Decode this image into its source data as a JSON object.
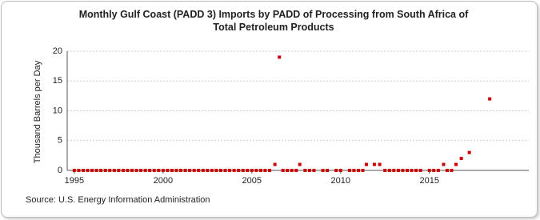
{
  "chart_data": {
    "type": "scatter",
    "title": "Monthly Gulf Coast (PADD 3) Imports by PADD of Processing from South Africa of Total Petroleum Products",
    "y_label": "Thousand Barrels per Day",
    "source": "Source: U.S. Energy Information Administration",
    "color": "#cc0000",
    "grid": true,
    "xlim": [
      1994.6,
      2020.6
    ],
    "ylim": [
      0,
      20
    ],
    "xticks": [
      1995,
      2000,
      2005,
      2010,
      2015
    ],
    "yticks": [
      0,
      5,
      10,
      15,
      20
    ],
    "x": [
      1995,
      1995.25,
      1995.5,
      1995.75,
      1996,
      1996.25,
      1996.5,
      1996.75,
      1997,
      1997.25,
      1997.5,
      1997.75,
      1998,
      1998.25,
      1998.5,
      1998.75,
      1999,
      1999.25,
      1999.5,
      1999.75,
      2000,
      2000.25,
      2000.5,
      2000.75,
      2001,
      2001.25,
      2001.5,
      2001.75,
      2002,
      2002.25,
      2002.5,
      2002.75,
      2003,
      2003.25,
      2003.5,
      2003.75,
      2004,
      2004.25,
      2004.5,
      2004.75,
      2005,
      2005.25,
      2005.5,
      2005.75,
      2006,
      2006.3,
      2006.55,
      2006.75,
      2007,
      2007.25,
      2007.5,
      2007.7,
      2008,
      2008.25,
      2008.5,
      2009,
      2009.25,
      2009.75,
      2010,
      2010.5,
      2010.75,
      2011,
      2011.25,
      2011.45,
      2011.9,
      2012.2,
      2012.5,
      2012.75,
      2013,
      2013.25,
      2013.5,
      2013.75,
      2014,
      2014.25,
      2014.5,
      2015,
      2015.25,
      2015.5,
      2015.8,
      2016,
      2016.25,
      2016.5,
      2016.8,
      2017.25,
      2018.4
    ],
    "values": [
      0,
      0,
      0,
      0,
      0,
      0,
      0,
      0,
      0,
      0,
      0,
      0,
      0,
      0,
      0,
      0,
      0,
      0,
      0,
      0,
      0,
      0,
      0,
      0,
      0,
      0,
      0,
      0,
      0,
      0,
      0,
      0,
      0,
      0,
      0,
      0,
      0,
      0,
      0,
      0,
      0,
      0,
      0,
      0,
      0,
      1,
      19,
      0,
      0,
      0,
      0,
      1,
      0,
      0,
      0,
      0,
      0,
      0,
      0,
      0,
      0,
      0,
      0,
      1,
      1,
      1,
      0,
      0,
      0,
      0,
      0,
      0,
      0,
      0,
      0,
      0,
      0,
      0,
      1,
      0,
      0,
      1,
      2,
      3,
      12
    ]
  }
}
